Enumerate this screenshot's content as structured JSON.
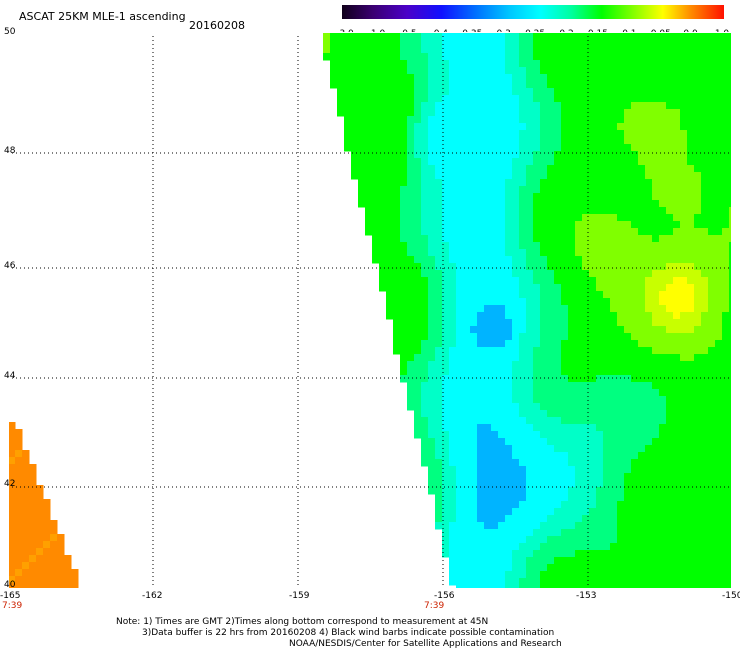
{
  "header": {
    "title": "ASCAT 25KM MLE-1 ascending",
    "date": "20160208"
  },
  "colorbar": {
    "ticks": [
      "-3.0",
      "-1.0",
      "-0.5",
      "-0.4",
      "-0.35",
      "-0.3",
      "-0.25",
      "-0.2",
      "-0.15",
      "-0.1",
      "-0.05",
      "0.0",
      "1.0"
    ],
    "colors": [
      "#1a0020",
      "#3a0070",
      "#4b00c8",
      "#1010ff",
      "#0070ff",
      "#00b4ff",
      "#00ffff",
      "#00ffa0",
      "#00ff00",
      "#a0ff00",
      "#ffff00",
      "#ff8000",
      "#ff1000"
    ]
  },
  "map": {
    "lat_labels": [
      "50",
      "48",
      "46",
      "44",
      "42",
      "40"
    ],
    "lon_labels": [
      "-165",
      "-162",
      "-159",
      "-156",
      "-153",
      "-150"
    ],
    "time_labels": [
      "7:39",
      "7:39"
    ]
  },
  "footer": {
    "line1": "Note: 1) Times are GMT 2)Times along bottom correspond to measurement at 45N",
    "line2": "3)Data buffer is 22 hrs from 20160208 4) Black wind barbs indicate possible contamination",
    "line3": "NOAA/NESDIS/Center for Satellite Applications and Research"
  }
}
